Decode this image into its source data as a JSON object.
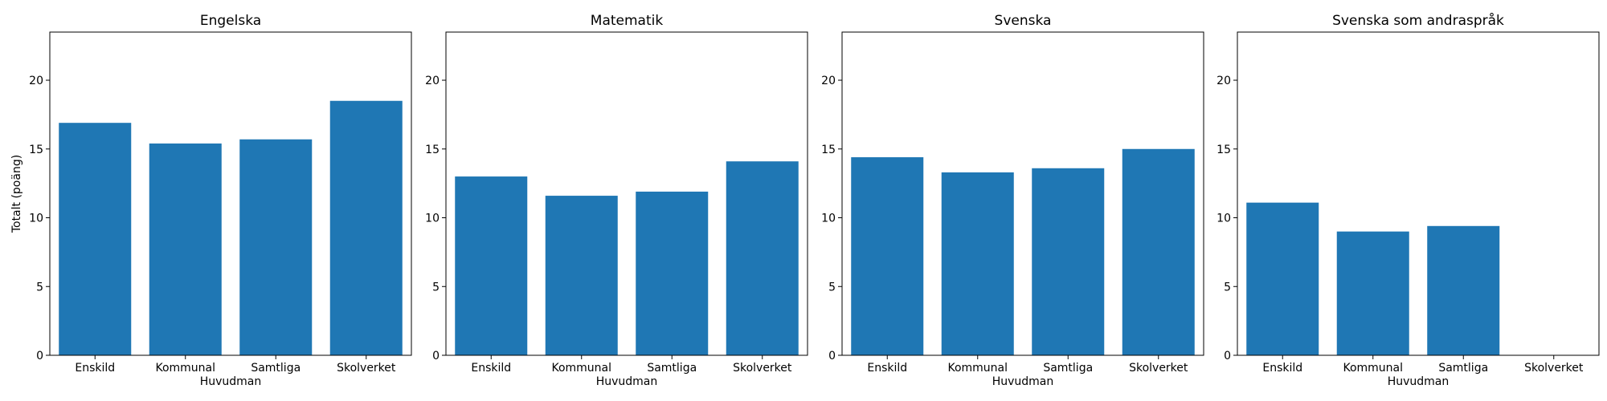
{
  "chart_data": [
    {
      "type": "bar",
      "title": "Engelska",
      "xlabel": "Huvudman",
      "ylabel": "Totalt (poäng)",
      "categories": [
        "Enskild",
        "Kommunal",
        "Samtliga",
        "Skolverket"
      ],
      "values": [
        16.9,
        15.4,
        15.7,
        18.5
      ],
      "ylim": [
        0,
        23.5
      ],
      "yticks": [
        0,
        5,
        10,
        15,
        20
      ],
      "grid": false
    },
    {
      "type": "bar",
      "title": "Matematik",
      "xlabel": "Huvudman",
      "ylabel": "",
      "categories": [
        "Enskild",
        "Kommunal",
        "Samtliga",
        "Skolverket"
      ],
      "values": [
        13.0,
        11.6,
        11.9,
        14.1
      ],
      "ylim": [
        0,
        23.5
      ],
      "yticks": [
        0,
        5,
        10,
        15,
        20
      ],
      "grid": false
    },
    {
      "type": "bar",
      "title": "Svenska",
      "xlabel": "Huvudman",
      "ylabel": "",
      "categories": [
        "Enskild",
        "Kommunal",
        "Samtliga",
        "Skolverket"
      ],
      "values": [
        14.4,
        13.3,
        13.6,
        15.0
      ],
      "ylim": [
        0,
        23.5
      ],
      "yticks": [
        0,
        5,
        10,
        15,
        20
      ],
      "grid": false
    },
    {
      "type": "bar",
      "title": "Svenska som andraspråk",
      "xlabel": "Huvudman",
      "ylabel": "",
      "categories": [
        "Enskild",
        "Kommunal",
        "Samtliga",
        "Skolverket"
      ],
      "values": [
        11.1,
        9.0,
        9.4,
        0
      ],
      "ylim": [
        0,
        23.5
      ],
      "yticks": [
        0,
        5,
        10,
        15,
        20
      ],
      "grid": false
    }
  ],
  "colors": {
    "bar": "#1f77b4",
    "axis": "#000000"
  }
}
